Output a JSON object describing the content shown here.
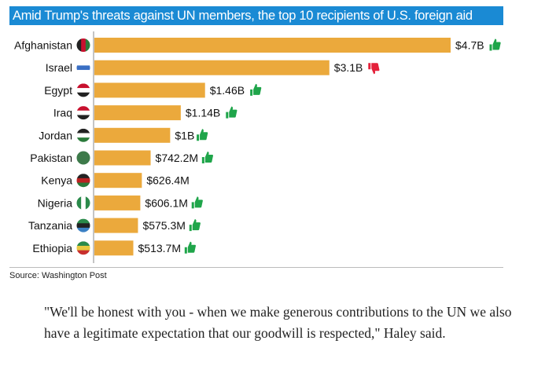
{
  "chart_data": {
    "type": "bar",
    "orientation": "horizontal",
    "title": "Amid Trump's threats against UN members, the top 10 recipients of U.S. foreign aid",
    "unit": "USD billions",
    "categories": [
      "Afghanistan",
      "Israel",
      "Egypt",
      "Iraq",
      "Jordan",
      "Pakistan",
      "Kenya",
      "Nigeria",
      "Tanzania",
      "Ethiopia"
    ],
    "values": [
      4.7,
      3.1,
      1.46,
      1.14,
      1.0,
      0.7422,
      0.6264,
      0.6061,
      0.5753,
      0.5137
    ],
    "data_labels": [
      "$4.7B",
      "$3.1B",
      "$1.46B",
      "$1.14B",
      "$1B",
      "$742.2M",
      "$626.4M",
      "$606.1M",
      "$575.3M",
      "$513.7M"
    ],
    "vote_icons": [
      "thumbs-up",
      "thumbs-down",
      "thumbs-up",
      "thumbs-up",
      "thumbs-up",
      "thumbs-up",
      "none",
      "thumbs-up",
      "thumbs-up",
      "thumbs-up"
    ],
    "flags": [
      "afghanistan-flag",
      "israel-flag",
      "egypt-flag",
      "iraq-flag",
      "jordan-flag",
      "pakistan-flag",
      "kenya-flag",
      "nigeria-flag",
      "tanzania-flag",
      "ethiopia-flag"
    ],
    "xlim": [
      0,
      4.7
    ],
    "xlabel": "",
    "ylabel": "",
    "grid": false,
    "legend": "none",
    "colors": {
      "bar": "#eba93c",
      "thumbs_up": "#1fa54a",
      "thumbs_down": "#e4213a",
      "title_bg": "#1a8ad4",
      "axis": "#888888"
    }
  },
  "source": "Source: Washington Post",
  "quote": "\"We'll be honest with you - when we make generous contributions to the UN we also have a legitimate expectation that our goodwill is respected,\" Haley said."
}
